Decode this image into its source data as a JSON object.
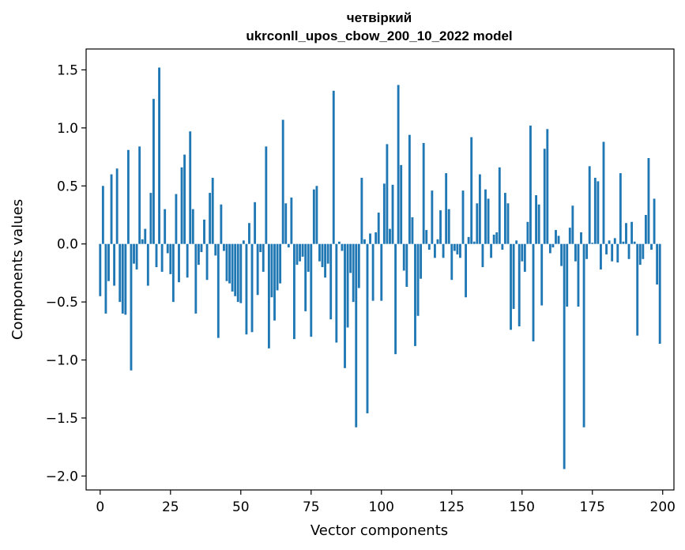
{
  "chart_data": {
    "type": "bar",
    "title": "четвіркий",
    "subtitle": "ukrconll_upos_cbow_200_10_2022 model",
    "xlabel": "Vector components",
    "ylabel": "Components values",
    "xlim": [
      -5,
      204
    ],
    "ylim": [
      -2.12,
      1.68
    ],
    "xticks": [
      0,
      25,
      50,
      75,
      100,
      125,
      150,
      175,
      200
    ],
    "yticks": [
      1.5,
      1.0,
      0.5,
      0.0,
      -0.5,
      -1.0,
      -1.5,
      -2.0
    ],
    "ytick_labels": [
      "1.5",
      "1.0",
      "0.5",
      "0.0",
      "−0.5",
      "−1.0",
      "−1.5",
      "−2.0"
    ],
    "bar_color": "#1f77b4",
    "values": [
      -0.45,
      0.5,
      -0.6,
      -0.32,
      0.6,
      -0.36,
      0.65,
      -0.5,
      -0.6,
      -0.61,
      0.81,
      -1.09,
      -0.17,
      -0.22,
      0.84,
      0.04,
      0.13,
      -0.36,
      0.44,
      1.25,
      -0.2,
      1.52,
      -0.24,
      0.3,
      -0.08,
      -0.26,
      -0.5,
      0.43,
      -0.33,
      0.66,
      0.77,
      -0.29,
      0.97,
      0.3,
      -0.6,
      -0.18,
      -0.07,
      0.21,
      -0.31,
      0.44,
      0.57,
      -0.1,
      -0.81,
      0.34,
      -0.06,
      -0.32,
      -0.34,
      -0.41,
      -0.45,
      -0.5,
      -0.51,
      0.03,
      -0.78,
      0.18,
      -0.76,
      0.36,
      -0.44,
      -0.07,
      -0.24,
      0.84,
      -0.9,
      -0.46,
      -0.66,
      -0.4,
      -0.34,
      1.07,
      0.35,
      -0.03,
      0.4,
      -0.82,
      -0.18,
      -0.15,
      -0.11,
      -0.58,
      -0.24,
      -0.8,
      0.47,
      0.5,
      -0.15,
      -0.2,
      -0.29,
      -0.17,
      -0.65,
      1.32,
      -0.85,
      0.02,
      -0.06,
      -1.07,
      -0.72,
      -0.25,
      -0.5,
      -1.58,
      -0.38,
      0.57,
      0.04,
      -1.46,
      0.09,
      -0.49,
      0.1,
      0.27,
      -0.49,
      0.52,
      0.86,
      0.13,
      0.51,
      -0.95,
      1.37,
      0.68,
      -0.23,
      -0.37,
      0.94,
      0.23,
      -0.88,
      -0.62,
      -0.3,
      0.87,
      0.12,
      -0.05,
      0.46,
      -0.12,
      0.04,
      0.29,
      -0.12,
      0.61,
      0.3,
      -0.31,
      -0.06,
      -0.09,
      -0.12,
      0.46,
      -0.46,
      0.06,
      0.92,
      0.02,
      0.35,
      0.6,
      -0.2,
      0.47,
      0.39,
      -0.12,
      0.08,
      0.1,
      0.66,
      -0.05,
      0.44,
      0.35,
      -0.74,
      -0.56,
      0.03,
      -0.71,
      -0.15,
      -0.24,
      0.19,
      1.02,
      -0.84,
      0.42,
      0.34,
      -0.53,
      0.82,
      0.99,
      -0.08,
      -0.03,
      0.12,
      0.07,
      -0.19,
      -1.94,
      -0.54,
      0.14,
      0.33,
      -0.15,
      -0.54,
      0.1,
      -1.58,
      -0.13,
      0.67,
      0.01,
      0.57,
      0.54,
      -0.22,
      0.88,
      -0.09,
      0.03,
      -0.15,
      0.05,
      -0.16,
      0.61,
      0.02,
      0.18,
      -0.13,
      0.19,
      0.02,
      -0.79,
      -0.18,
      -0.13,
      0.25,
      0.74,
      -0.05,
      0.39,
      -0.35,
      -0.86
    ]
  }
}
